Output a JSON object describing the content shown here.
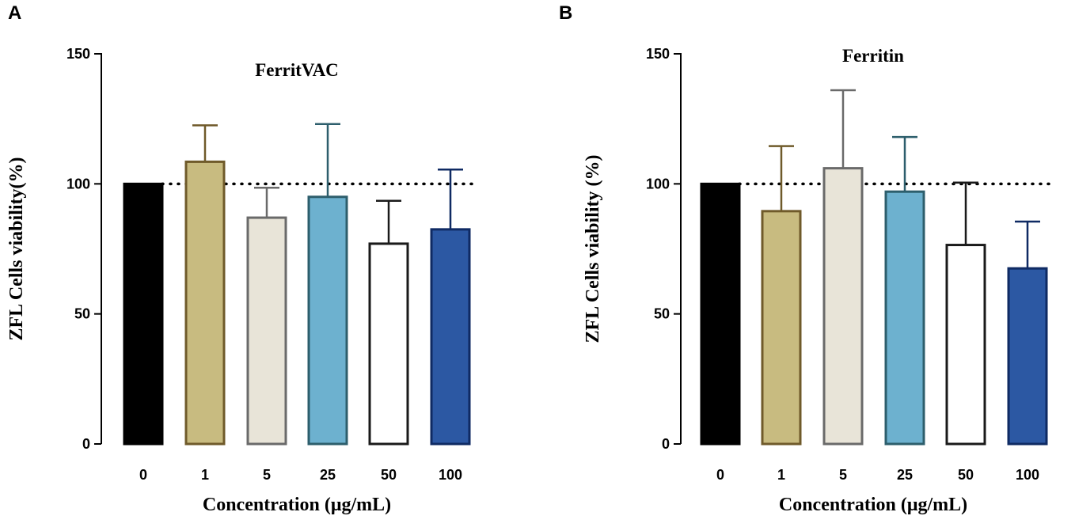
{
  "chart_data": [
    {
      "panel": "A",
      "type": "bar",
      "title": "FerritVAC",
      "xlabel": "Concentration (μg/mL)",
      "ylabel": "ZFL Cells viability(%)",
      "ylim": [
        0,
        150
      ],
      "yticks": [
        "0",
        "50",
        "100",
        "150"
      ],
      "reference_line": 100,
      "categories": [
        "0",
        "1",
        "5",
        "25",
        "50",
        "100"
      ],
      "values": [
        100,
        108.5,
        87,
        95,
        77,
        82.5
      ],
      "error_upper": [
        100,
        122.5,
        98.5,
        123,
        93.5,
        105.5
      ],
      "fill_colors": [
        "#000000",
        "#c8bb80",
        "#e8e4d8",
        "#6db1cf",
        "#ffffff",
        "#2c58a3"
      ],
      "stroke_colors": [
        "#000000",
        "#6f5a2a",
        "#6a6a6a",
        "#2d5e6c",
        "#1a1a1a",
        "#0f2a63"
      ]
    },
    {
      "panel": "B",
      "type": "bar",
      "title": "Ferritin",
      "xlabel": "Concentration (μg/mL)",
      "ylabel": "ZFL Cells viability (%)",
      "ylim": [
        0,
        150
      ],
      "yticks": [
        "0",
        "50",
        "100",
        "150"
      ],
      "reference_line": 100,
      "categories": [
        "0",
        "1",
        "5",
        "25",
        "50",
        "100"
      ],
      "values": [
        100,
        89.5,
        106,
        97,
        76.5,
        67.5
      ],
      "error_upper": [
        100,
        114.5,
        136,
        118,
        100.5,
        85.5
      ],
      "fill_colors": [
        "#000000",
        "#c8bb80",
        "#e8e4d8",
        "#6db1cf",
        "#ffffff",
        "#2c58a3"
      ],
      "stroke_colors": [
        "#000000",
        "#6f5a2a",
        "#6a6a6a",
        "#2d5e6c",
        "#1a1a1a",
        "#0f2a63"
      ]
    }
  ]
}
